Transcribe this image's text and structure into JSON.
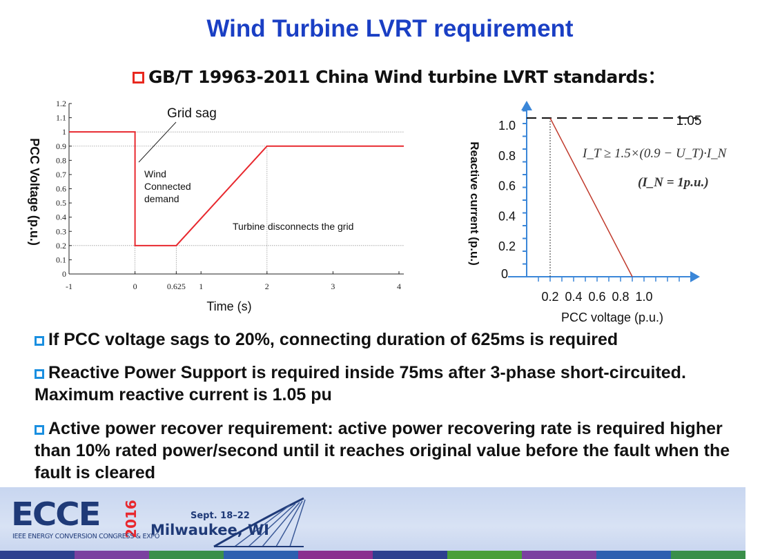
{
  "title": "Wind Turbine LVRT requirement",
  "subtitle": "GB/T 19963-2011 China Wind turbine LVRT standards：",
  "bullets": [
    "If PCC voltage sags to 20%, connecting duration of 625ms is required",
    "Reactive Power Support is required inside 75ms after 3-phase short-circuited. Maximum reactive current is 1.05 pu",
    "Active power recover requirement: active power recovering rate is required higher than 10% rated power/second until it reaches original value before the fault when the fault is cleared"
  ],
  "left_chart": {
    "ylabel": "PCC Voltage (p.u.)",
    "xlabel": "Time (s)",
    "y_ticks": [
      "0",
      "0.1",
      "0.2",
      "0.3",
      "0.4",
      "0.5",
      "0.6",
      "0.7",
      "0.8",
      "0.9",
      "1",
      "1.1",
      "1.2"
    ],
    "x_ticks": [
      "-1",
      "0",
      "0.625",
      "1",
      "2",
      "3",
      "4"
    ],
    "annotation_grid_sag": "Grid sag",
    "annotation_wind_1": "Wind",
    "annotation_wind_2": "Connected",
    "annotation_wind_3": "demand",
    "annotation_disconnect": "Turbine disconnects the grid"
  },
  "right_chart": {
    "ylabel": "Reactive current (p.u.)",
    "xlabel": "PCC voltage (p.u.)",
    "y_ticks": [
      "0",
      "0.2",
      "0.4",
      "0.6",
      "0.8",
      "1.0"
    ],
    "x_ticks": [
      "0.2",
      "0.4",
      "0.6",
      "0.8",
      "1.0"
    ],
    "level_label": "1.05",
    "formula_1": "I_T ≥ 1.5×(0.9 − U_T)·I_N",
    "formula_2": "(I_N = 1p.u.)"
  },
  "chart_data": [
    {
      "type": "line",
      "x": [
        -1,
        0,
        0,
        0.625,
        2,
        4
      ],
      "y": [
        1.0,
        1.0,
        0.2,
        0.2,
        0.9,
        0.9
      ],
      "xlim": [
        -1,
        4
      ],
      "ylim": [
        0,
        1.2
      ],
      "xlabel": "Time (s)",
      "ylabel": "PCC Voltage (p.u.)",
      "color": "#e8282e",
      "reference_lines_y": [
        1.0,
        0.9,
        0.2
      ]
    },
    {
      "type": "line",
      "x": [
        0.2,
        0.9
      ],
      "y": [
        1.05,
        0.0
      ],
      "dashed_level": 1.05,
      "xlabel": "PCC voltage (p.u.)",
      "ylabel": "Reactive current (p.u.)",
      "color": "#c0392b"
    }
  ],
  "footer": {
    "logo": "ECCE",
    "year": "2016",
    "org": "IEEE ENERGY CONVERSION CONGRESS & EXPO",
    "dates": "Sept. 18–22",
    "city": "Milwaukee, WI"
  },
  "colors": {
    "title": "#1a3fc4",
    "curve": "#e8282e",
    "axis_blue": "#3a86d8",
    "footer_navy": "#1f3a78"
  }
}
